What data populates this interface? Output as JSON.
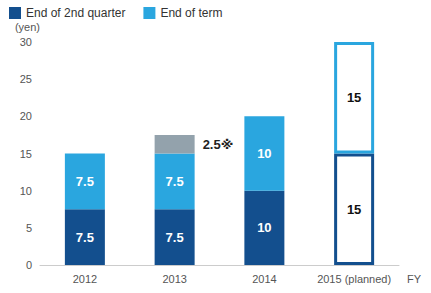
{
  "chart_data": {
    "type": "bar",
    "stacked": true,
    "data_labels": true,
    "grid": false,
    "legend": "top-left",
    "x_label": "FY",
    "y_label": "(yen)",
    "categories": [
      "2012",
      "2013",
      "2014",
      "2015 (planned)"
    ],
    "ylim": [
      0,
      30
    ],
    "yticks": [
      0,
      5,
      10,
      15,
      20,
      25,
      30
    ],
    "series": [
      {
        "name": "End of 2nd quarter",
        "color": "#134f8e",
        "colors": [
          "#134f8e",
          "#134f8e",
          "#134f8e",
          "#ffffff"
        ],
        "values": [
          7.5,
          7.5,
          10,
          15
        ]
      },
      {
        "name": "End of term",
        "color": "#2aa6df",
        "colors": [
          "#2aa6df",
          "#2aa6df",
          "#2aa6df",
          "#ffffff"
        ],
        "values": [
          7.5,
          7.5,
          10,
          15
        ]
      },
      {
        "color": "#93a2ac",
        "values": [
          null,
          2.5,
          null,
          null
        ],
        "value_labels": [
          null,
          "2.5※",
          null,
          null
        ]
      }
    ]
  }
}
